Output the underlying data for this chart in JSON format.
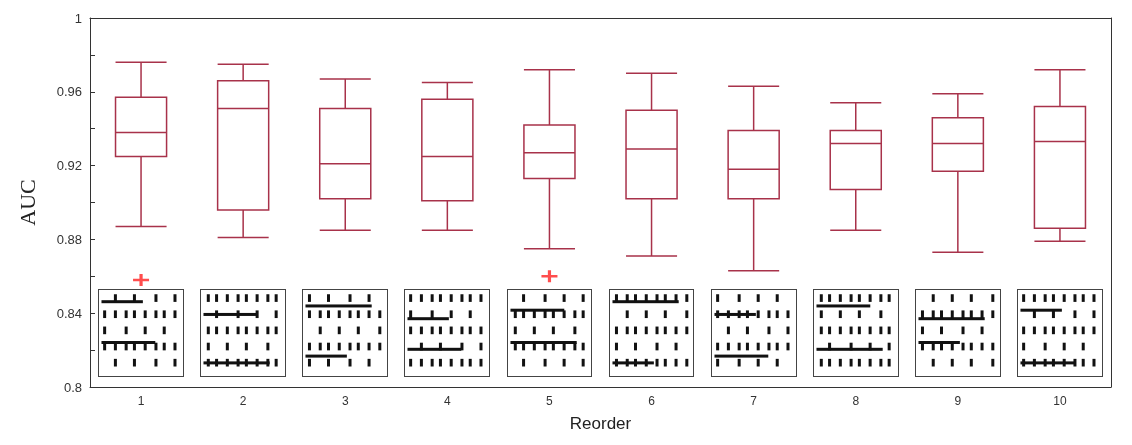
{
  "chart_data": {
    "type": "box",
    "xlabel": "Reorder",
    "ylabel": "AUC",
    "categories": [
      "1",
      "2",
      "3",
      "4",
      "5",
      "6",
      "7",
      "8",
      "9",
      "10"
    ],
    "ylim": [
      0.8,
      1
    ],
    "yticks": [
      0.8,
      {
        "value": 0.82,
        "label": null
      },
      0.84,
      {
        "value": 0.86,
        "label": null
      },
      0.88,
      {
        "value": 0.9,
        "label": null
      },
      0.92,
      {
        "value": 0.94,
        "label": null
      },
      0.96,
      {
        "value": 0.98,
        "label": null
      },
      1
    ],
    "grid": false,
    "series": [
      {
        "color": "#a8324a",
        "boxes": [
          {
            "low": 0.887,
            "q1": 0.925,
            "median": 0.938,
            "q3": 0.957,
            "high": 0.976,
            "outliers": [
              0.858
            ]
          },
          {
            "low": 0.881,
            "q1": 0.896,
            "median": 0.951,
            "q3": 0.966,
            "high": 0.975
          },
          {
            "low": 0.885,
            "q1": 0.902,
            "median": 0.921,
            "q3": 0.951,
            "high": 0.967
          },
          {
            "low": 0.885,
            "q1": 0.901,
            "median": 0.925,
            "q3": 0.956,
            "high": 0.965
          },
          {
            "low": 0.875,
            "q1": 0.913,
            "median": 0.927,
            "q3": 0.942,
            "high": 0.972,
            "outliers": [
              0.86
            ]
          },
          {
            "low": 0.871,
            "q1": 0.902,
            "median": 0.929,
            "q3": 0.95,
            "high": 0.97
          },
          {
            "low": 0.863,
            "q1": 0.902,
            "median": 0.918,
            "q3": 0.939,
            "high": 0.963
          },
          {
            "low": 0.885,
            "q1": 0.907,
            "median": 0.932,
            "q3": 0.939,
            "high": 0.954
          },
          {
            "low": 0.873,
            "q1": 0.917,
            "median": 0.932,
            "q3": 0.946,
            "high": 0.959
          },
          {
            "low": 0.879,
            "q1": 0.886,
            "median": 0.933,
            "q3": 0.952,
            "high": 0.972
          }
        ]
      }
    ]
  }
}
